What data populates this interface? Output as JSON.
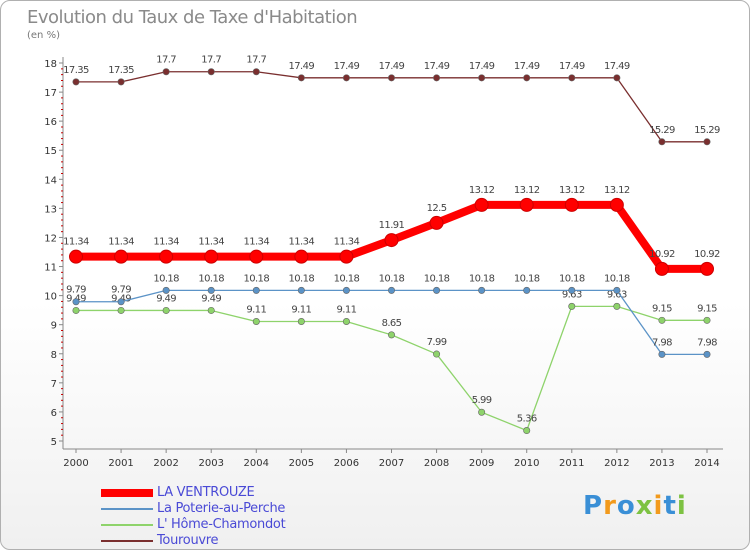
{
  "chart_data": {
    "type": "line",
    "title": "Evolution du Taux de Taxe d'Habitation",
    "ylabel": "(en %)",
    "xlabel": "",
    "ylim": [
      5,
      18
    ],
    "yticks": [
      "5",
      "6",
      "7",
      "8",
      "9",
      "10",
      "11",
      "12",
      "13",
      "14",
      "15",
      "16",
      "17",
      "18"
    ],
    "categories": [
      "2000",
      "2001",
      "2002",
      "2003",
      "2004",
      "2005",
      "2006",
      "2007",
      "2008",
      "2009",
      "2010",
      "2011",
      "2012",
      "2013",
      "2014"
    ],
    "series": [
      {
        "name": "Tourouvre",
        "color": "#7a2f2f",
        "values": [
          17.35,
          17.35,
          17.7,
          17.7,
          17.7,
          17.49,
          17.49,
          17.49,
          17.49,
          17.49,
          17.49,
          17.49,
          17.49,
          15.29,
          15.29
        ],
        "labels": [
          "17.35",
          "17.35",
          "17.7",
          "17.7",
          "17.7",
          "17.49",
          "17.49",
          "17.49",
          "17.49",
          "17.49",
          "17.49",
          "17.49",
          "17.49",
          "15.29",
          "15.29"
        ]
      },
      {
        "name": "L' Hôme-Chamondot",
        "color": "#8ed36b",
        "values": [
          9.49,
          9.49,
          9.49,
          9.49,
          9.11,
          9.11,
          9.11,
          8.65,
          7.99,
          5.99,
          5.36,
          9.63,
          9.63,
          9.15,
          9.15
        ],
        "labels": [
          "9.49",
          "9.49",
          "9.49",
          "9.49",
          "9.11",
          "9.11",
          "9.11",
          "8.65",
          "7.99",
          "5.99",
          "5.36",
          "9.63",
          "9.63",
          "9.15",
          "9.15"
        ]
      },
      {
        "name": "La Poterie-au-Perche",
        "color": "#5b93c7",
        "values": [
          9.79,
          9.79,
          10.18,
          10.18,
          10.18,
          10.18,
          10.18,
          10.18,
          10.18,
          10.18,
          10.18,
          10.18,
          10.18,
          7.98,
          7.98
        ],
        "labels": [
          "9.79",
          "9.79",
          "10.18",
          "10.18",
          "10.18",
          "10.18",
          "10.18",
          "10.18",
          "10.18",
          "10.18",
          "10.18",
          "10.18",
          "10.18",
          "7.98",
          "7.98"
        ]
      },
      {
        "name": "LA VENTROUZE",
        "color": "#ff0000",
        "values": [
          11.34,
          11.34,
          11.34,
          11.34,
          11.34,
          11.34,
          11.34,
          11.91,
          12.5,
          13.12,
          13.12,
          13.12,
          13.12,
          10.92,
          10.92
        ],
        "labels": [
          "11.34",
          "11.34",
          "11.34",
          "11.34",
          "11.34",
          "11.34",
          "11.34",
          "11.91",
          "12.5",
          "13.12",
          "13.12",
          "13.12",
          "13.12",
          "10.92",
          "10.92"
        ]
      }
    ],
    "legend": [
      "LA VENTROUZE",
      "La Poterie-au-Perche",
      "L' Hôme-Chamondot",
      "Tourouvre"
    ],
    "legend_position": "bottom-left",
    "grid": false
  },
  "logo": {
    "letters": [
      "P",
      "r",
      "o",
      "x",
      "i",
      "t",
      "i"
    ],
    "colors": [
      "#3a8fd6",
      "#f29a1c",
      "#3a8fd6",
      "#7dc242",
      "#f29a1c",
      "#3a8fd6",
      "#7dc242"
    ]
  }
}
